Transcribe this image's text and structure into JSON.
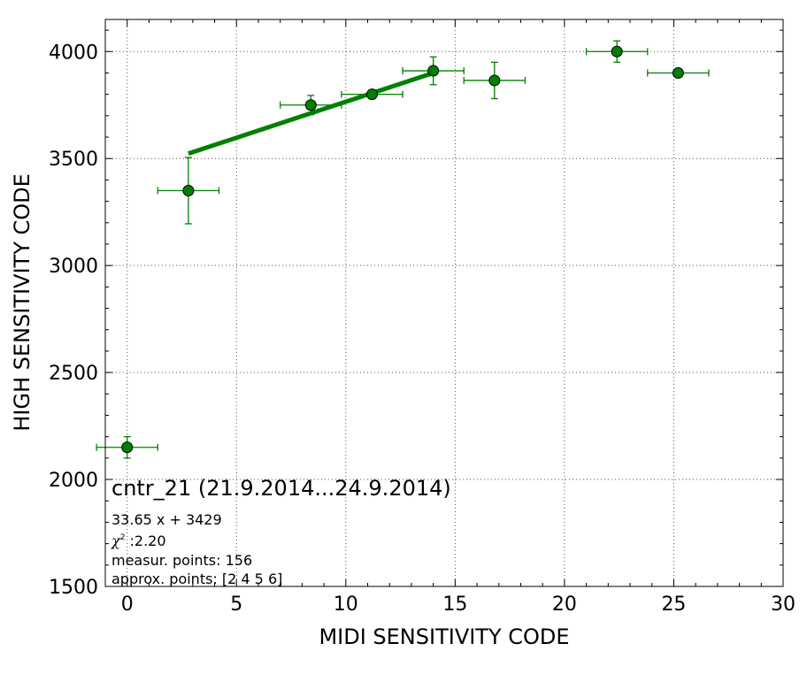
{
  "chart_data": {
    "type": "scatter",
    "xlabel": "MIDI SENSITIVITY CODE",
    "ylabel": "HIGH SENSITIVITY CODE",
    "xlim": [
      -1,
      30
    ],
    "ylim": [
      1500,
      4150
    ],
    "x_ticks": [
      0,
      5,
      10,
      15,
      20,
      25,
      30
    ],
    "y_ticks": [
      1500,
      2000,
      2500,
      3000,
      3500,
      4000
    ],
    "grid": true,
    "colors": {
      "marker": "#008000",
      "line": "#008000",
      "grid": "#555555"
    },
    "points": [
      {
        "x": 0.0,
        "y": 2150,
        "xerr": 1.4,
        "yerr": 50
      },
      {
        "x": 2.8,
        "y": 3350,
        "xerr": 1.4,
        "yerr": 155
      },
      {
        "x": 8.4,
        "y": 3750,
        "xerr": 1.4,
        "yerr": 45
      },
      {
        "x": 11.2,
        "y": 3800,
        "xerr": 1.4,
        "yerr": 20
      },
      {
        "x": 14.0,
        "y": 3910,
        "xerr": 1.4,
        "yerr": 65
      },
      {
        "x": 16.8,
        "y": 3865,
        "xerr": 1.4,
        "yerr": 85
      },
      {
        "x": 22.4,
        "y": 4000,
        "xerr": 1.4,
        "yerr": 50
      },
      {
        "x": 25.2,
        "y": 3900,
        "xerr": 1.4,
        "yerr": 0
      }
    ],
    "fit": {
      "slope": 33.65,
      "intercept": 3429,
      "x_range": [
        2.8,
        14.0
      ]
    },
    "annotations": {
      "title": "cntr_21 (21.9.2014...24.9.2014)",
      "equation": "33.65 x + 3429",
      "chi2_symbol": "χ",
      "chi2_sup": "2",
      "chi2_value": " :2.20",
      "measur_points": "measur. points: 156",
      "approx_points": "approx. points: [2 4 5 6]"
    }
  }
}
